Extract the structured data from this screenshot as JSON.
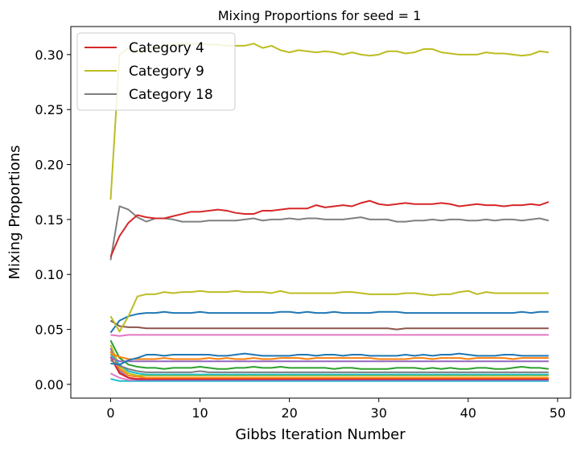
{
  "chart_data": {
    "type": "line",
    "title": "Mixing Proportions for seed = 1",
    "xlabel": "Gibbs Iteration Number",
    "ylabel": "Mixing Proportions",
    "xlim": [
      -4.45,
      51.45
    ],
    "ylim": [
      -0.0125,
      0.3255
    ],
    "xticks": [
      0,
      10,
      20,
      30,
      40,
      50
    ],
    "xtick_labels": [
      "0",
      "10",
      "20",
      "30",
      "40",
      "50"
    ],
    "yticks": [
      0.0,
      0.05,
      0.1,
      0.15,
      0.2,
      0.25,
      0.3
    ],
    "ytick_labels": [
      "0.00",
      "0.05",
      "0.10",
      "0.15",
      "0.20",
      "0.25",
      "0.30"
    ],
    "grid": false,
    "legend": {
      "position": "top-left",
      "entries": [
        {
          "name": "Category 4",
          "color": "#d62728"
        },
        {
          "name": "Category 9",
          "color": "#bcbd22"
        },
        {
          "name": "Category 18",
          "color": "#7f7f7f"
        }
      ]
    },
    "series": [
      {
        "name": "Category 9",
        "color": "#bcbd22",
        "values": [
          0.168,
          0.3,
          0.306,
          0.302,
          0.305,
          0.307,
          0.308,
          0.309,
          0.31,
          0.31,
          0.31,
          0.309,
          0.309,
          0.308,
          0.308,
          0.308,
          0.31,
          0.306,
          0.308,
          0.304,
          0.302,
          0.304,
          0.303,
          0.302,
          0.303,
          0.302,
          0.3,
          0.302,
          0.3,
          0.299,
          0.3,
          0.303,
          0.303,
          0.301,
          0.302,
          0.305,
          0.305,
          0.302,
          0.301,
          0.3,
          0.3,
          0.3,
          0.302,
          0.301,
          0.301,
          0.3,
          0.299,
          0.3,
          0.303,
          0.302
        ]
      },
      {
        "name": "Category 4",
        "color": "#d62728",
        "values": [
          0.116,
          0.135,
          0.147,
          0.154,
          0.152,
          0.151,
          0.151,
          0.153,
          0.155,
          0.157,
          0.157,
          0.158,
          0.159,
          0.158,
          0.156,
          0.155,
          0.155,
          0.158,
          0.158,
          0.159,
          0.16,
          0.16,
          0.16,
          0.163,
          0.161,
          0.162,
          0.163,
          0.162,
          0.165,
          0.167,
          0.164,
          0.163,
          0.164,
          0.165,
          0.164,
          0.164,
          0.164,
          0.165,
          0.164,
          0.162,
          0.163,
          0.164,
          0.163,
          0.163,
          0.162,
          0.163,
          0.163,
          0.164,
          0.163,
          0.166
        ]
      },
      {
        "name": "Category 18",
        "color": "#7f7f7f",
        "values": [
          0.113,
          0.162,
          0.159,
          0.152,
          0.148,
          0.151,
          0.151,
          0.15,
          0.148,
          0.148,
          0.148,
          0.149,
          0.149,
          0.149,
          0.149,
          0.15,
          0.151,
          0.149,
          0.15,
          0.15,
          0.151,
          0.15,
          0.151,
          0.151,
          0.15,
          0.15,
          0.15,
          0.151,
          0.152,
          0.15,
          0.15,
          0.15,
          0.148,
          0.148,
          0.149,
          0.149,
          0.15,
          0.149,
          0.15,
          0.15,
          0.149,
          0.149,
          0.15,
          0.149,
          0.15,
          0.15,
          0.149,
          0.15,
          0.151,
          0.149
        ]
      },
      {
        "color": "#bcbd22",
        "values": [
          0.062,
          0.048,
          0.062,
          0.08,
          0.082,
          0.082,
          0.084,
          0.083,
          0.084,
          0.084,
          0.085,
          0.084,
          0.084,
          0.084,
          0.085,
          0.084,
          0.084,
          0.084,
          0.083,
          0.085,
          0.083,
          0.083,
          0.083,
          0.083,
          0.083,
          0.083,
          0.084,
          0.084,
          0.083,
          0.082,
          0.082,
          0.082,
          0.082,
          0.083,
          0.083,
          0.082,
          0.081,
          0.082,
          0.082,
          0.084,
          0.085,
          0.082,
          0.084,
          0.083,
          0.083,
          0.083,
          0.083,
          0.083,
          0.083,
          0.083
        ]
      },
      {
        "color": "#1f77b4",
        "values": [
          0.047,
          0.058,
          0.062,
          0.064,
          0.065,
          0.065,
          0.066,
          0.065,
          0.065,
          0.065,
          0.066,
          0.065,
          0.065,
          0.065,
          0.065,
          0.065,
          0.065,
          0.065,
          0.065,
          0.066,
          0.066,
          0.065,
          0.066,
          0.065,
          0.065,
          0.066,
          0.065,
          0.065,
          0.065,
          0.065,
          0.066,
          0.066,
          0.066,
          0.065,
          0.065,
          0.065,
          0.065,
          0.065,
          0.065,
          0.065,
          0.065,
          0.065,
          0.065,
          0.065,
          0.065,
          0.065,
          0.066,
          0.065,
          0.066,
          0.066
        ]
      },
      {
        "color": "#8c564b",
        "values": [
          0.058,
          0.053,
          0.052,
          0.052,
          0.051,
          0.051,
          0.051,
          0.051,
          0.051,
          0.051,
          0.051,
          0.051,
          0.051,
          0.051,
          0.051,
          0.051,
          0.051,
          0.051,
          0.051,
          0.051,
          0.051,
          0.051,
          0.051,
          0.051,
          0.051,
          0.051,
          0.051,
          0.051,
          0.051,
          0.051,
          0.051,
          0.051,
          0.05,
          0.051,
          0.051,
          0.051,
          0.051,
          0.051,
          0.051,
          0.051,
          0.051,
          0.051,
          0.051,
          0.051,
          0.051,
          0.051,
          0.051,
          0.051,
          0.051,
          0.051
        ]
      },
      {
        "color": "#e377c2",
        "values": [
          0.045,
          0.044,
          0.045,
          0.045,
          0.045,
          0.045,
          0.045,
          0.045,
          0.045,
          0.045,
          0.045,
          0.045,
          0.045,
          0.045,
          0.045,
          0.045,
          0.045,
          0.045,
          0.045,
          0.045,
          0.045,
          0.045,
          0.045,
          0.045,
          0.045,
          0.045,
          0.045,
          0.045,
          0.045,
          0.045,
          0.045,
          0.045,
          0.045,
          0.045,
          0.045,
          0.045,
          0.045,
          0.045,
          0.045,
          0.045,
          0.045,
          0.045,
          0.045,
          0.045,
          0.045,
          0.045,
          0.045,
          0.045,
          0.045,
          0.045
        ]
      },
      {
        "color": "#1f77b4",
        "values": [
          0.019,
          0.018,
          0.022,
          0.024,
          0.027,
          0.027,
          0.026,
          0.027,
          0.027,
          0.027,
          0.027,
          0.027,
          0.026,
          0.026,
          0.027,
          0.028,
          0.027,
          0.026,
          0.026,
          0.026,
          0.026,
          0.027,
          0.027,
          0.026,
          0.027,
          0.027,
          0.026,
          0.027,
          0.027,
          0.026,
          0.026,
          0.026,
          0.026,
          0.027,
          0.026,
          0.027,
          0.026,
          0.027,
          0.027,
          0.028,
          0.027,
          0.026,
          0.026,
          0.026,
          0.027,
          0.027,
          0.026,
          0.026,
          0.026,
          0.026
        ]
      },
      {
        "color": "#ff7f0e",
        "values": [
          0.028,
          0.025,
          0.023,
          0.023,
          0.023,
          0.023,
          0.024,
          0.023,
          0.023,
          0.023,
          0.023,
          0.024,
          0.023,
          0.024,
          0.023,
          0.023,
          0.024,
          0.023,
          0.023,
          0.024,
          0.024,
          0.024,
          0.023,
          0.024,
          0.024,
          0.024,
          0.024,
          0.024,
          0.024,
          0.024,
          0.023,
          0.023,
          0.023,
          0.023,
          0.024,
          0.024,
          0.023,
          0.024,
          0.024,
          0.024,
          0.023,
          0.024,
          0.024,
          0.024,
          0.024,
          0.023,
          0.024,
          0.024,
          0.024,
          0.024
        ]
      },
      {
        "color": "#9467bd",
        "values": [
          0.024,
          0.021,
          0.021,
          0.021,
          0.021,
          0.021,
          0.021,
          0.021,
          0.021,
          0.021,
          0.021,
          0.021,
          0.021,
          0.021,
          0.021,
          0.021,
          0.021,
          0.021,
          0.021,
          0.021,
          0.021,
          0.021,
          0.021,
          0.021,
          0.021,
          0.021,
          0.021,
          0.021,
          0.021,
          0.021,
          0.021,
          0.021,
          0.021,
          0.021,
          0.021,
          0.021,
          0.021,
          0.021,
          0.021,
          0.021,
          0.021,
          0.021,
          0.021,
          0.021,
          0.021,
          0.021,
          0.021,
          0.021,
          0.021,
          0.021
        ]
      },
      {
        "color": "#2ca02c",
        "values": [
          0.04,
          0.024,
          0.018,
          0.016,
          0.015,
          0.015,
          0.014,
          0.015,
          0.015,
          0.015,
          0.016,
          0.015,
          0.014,
          0.014,
          0.015,
          0.015,
          0.016,
          0.015,
          0.015,
          0.016,
          0.015,
          0.015,
          0.015,
          0.015,
          0.015,
          0.014,
          0.015,
          0.015,
          0.014,
          0.014,
          0.014,
          0.014,
          0.015,
          0.015,
          0.015,
          0.014,
          0.015,
          0.014,
          0.015,
          0.014,
          0.014,
          0.015,
          0.015,
          0.014,
          0.014,
          0.015,
          0.016,
          0.015,
          0.015,
          0.014
        ]
      },
      {
        "color": "#7f7f7f",
        "values": [
          0.022,
          0.017,
          0.014,
          0.012,
          0.011,
          0.011,
          0.011,
          0.011,
          0.011,
          0.011,
          0.012,
          0.011,
          0.011,
          0.011,
          0.011,
          0.011,
          0.011,
          0.011,
          0.011,
          0.011,
          0.011,
          0.011,
          0.011,
          0.011,
          0.011,
          0.011,
          0.011,
          0.011,
          0.011,
          0.011,
          0.011,
          0.011,
          0.011,
          0.011,
          0.011,
          0.011,
          0.011,
          0.011,
          0.011,
          0.011,
          0.011,
          0.011,
          0.011,
          0.011,
          0.011,
          0.011,
          0.011,
          0.011,
          0.011,
          0.011
        ]
      },
      {
        "color": "#17becf",
        "values": [
          0.027,
          0.018,
          0.012,
          0.01,
          0.009,
          0.009,
          0.009,
          0.009,
          0.009,
          0.009,
          0.009,
          0.009,
          0.009,
          0.009,
          0.009,
          0.009,
          0.009,
          0.009,
          0.009,
          0.009,
          0.009,
          0.009,
          0.009,
          0.009,
          0.009,
          0.009,
          0.009,
          0.009,
          0.009,
          0.009,
          0.009,
          0.009,
          0.009,
          0.009,
          0.009,
          0.009,
          0.009,
          0.009,
          0.009,
          0.009,
          0.009,
          0.009,
          0.009,
          0.009,
          0.009,
          0.009,
          0.009,
          0.009,
          0.009,
          0.009
        ]
      },
      {
        "color": "#bcbd22",
        "values": [
          0.036,
          0.016,
          0.01,
          0.008,
          0.008,
          0.008,
          0.008,
          0.008,
          0.008,
          0.008,
          0.008,
          0.008,
          0.008,
          0.008,
          0.008,
          0.008,
          0.008,
          0.008,
          0.008,
          0.008,
          0.008,
          0.008,
          0.008,
          0.008,
          0.008,
          0.008,
          0.008,
          0.008,
          0.008,
          0.008,
          0.008,
          0.008,
          0.008,
          0.008,
          0.008,
          0.008,
          0.008,
          0.008,
          0.008,
          0.008,
          0.008,
          0.008,
          0.008,
          0.008,
          0.008,
          0.008,
          0.008,
          0.008,
          0.008,
          0.008
        ]
      },
      {
        "color": "#ff7f0e",
        "values": [
          0.03,
          0.014,
          0.008,
          0.007,
          0.006,
          0.006,
          0.006,
          0.006,
          0.006,
          0.006,
          0.006,
          0.006,
          0.006,
          0.006,
          0.006,
          0.006,
          0.006,
          0.006,
          0.006,
          0.006,
          0.006,
          0.006,
          0.006,
          0.006,
          0.006,
          0.006,
          0.006,
          0.006,
          0.006,
          0.006,
          0.006,
          0.006,
          0.006,
          0.006,
          0.006,
          0.006,
          0.006,
          0.006,
          0.006,
          0.006,
          0.006,
          0.006,
          0.006,
          0.006,
          0.006,
          0.006,
          0.006,
          0.006,
          0.006,
          0.006
        ]
      },
      {
        "color": "#d62728",
        "values": [
          0.025,
          0.01,
          0.006,
          0.005,
          0.005,
          0.005,
          0.005,
          0.005,
          0.005,
          0.005,
          0.005,
          0.005,
          0.005,
          0.005,
          0.005,
          0.005,
          0.005,
          0.005,
          0.005,
          0.005,
          0.005,
          0.005,
          0.005,
          0.005,
          0.005,
          0.005,
          0.005,
          0.005,
          0.005,
          0.005,
          0.005,
          0.005,
          0.005,
          0.005,
          0.005,
          0.005,
          0.005,
          0.005,
          0.005,
          0.005,
          0.005,
          0.005,
          0.005,
          0.005,
          0.005,
          0.005,
          0.005,
          0.005,
          0.005,
          0.005
        ]
      },
      {
        "color": "#9467bd",
        "values": [
          0.033,
          0.012,
          0.006,
          0.004,
          0.004,
          0.004,
          0.004,
          0.004,
          0.004,
          0.004,
          0.004,
          0.004,
          0.004,
          0.004,
          0.004,
          0.004,
          0.004,
          0.004,
          0.004,
          0.004,
          0.004,
          0.004,
          0.004,
          0.004,
          0.004,
          0.004,
          0.004,
          0.004,
          0.004,
          0.004,
          0.004,
          0.004,
          0.004,
          0.004,
          0.004,
          0.004,
          0.004,
          0.004,
          0.004,
          0.004,
          0.004,
          0.004,
          0.004,
          0.004,
          0.004,
          0.004,
          0.004,
          0.004,
          0.004,
          0.004
        ]
      },
      {
        "color": "#e377c2",
        "values": [
          0.01,
          0.006,
          0.004,
          0.004,
          0.004,
          0.004,
          0.004,
          0.004,
          0.004,
          0.004,
          0.004,
          0.004,
          0.004,
          0.004,
          0.004,
          0.004,
          0.004,
          0.004,
          0.004,
          0.004,
          0.004,
          0.004,
          0.004,
          0.004,
          0.004,
          0.004,
          0.004,
          0.004,
          0.004,
          0.004,
          0.004,
          0.004,
          0.004,
          0.004,
          0.004,
          0.004,
          0.004,
          0.004,
          0.004,
          0.004,
          0.004,
          0.004,
          0.004,
          0.004,
          0.004,
          0.004,
          0.004,
          0.004,
          0.004,
          0.004
        ]
      },
      {
        "color": "#17becf",
        "values": [
          0.005,
          0.003,
          0.003,
          0.003,
          0.003,
          0.003,
          0.003,
          0.003,
          0.003,
          0.003,
          0.003,
          0.003,
          0.003,
          0.003,
          0.003,
          0.003,
          0.003,
          0.003,
          0.003,
          0.003,
          0.003,
          0.003,
          0.003,
          0.003,
          0.003,
          0.003,
          0.003,
          0.003,
          0.003,
          0.003,
          0.003,
          0.003,
          0.003,
          0.003,
          0.003,
          0.003,
          0.003,
          0.003,
          0.003,
          0.003,
          0.003,
          0.003,
          0.003,
          0.003,
          0.003,
          0.003,
          0.003,
          0.003,
          0.003,
          0.003
        ]
      }
    ]
  }
}
